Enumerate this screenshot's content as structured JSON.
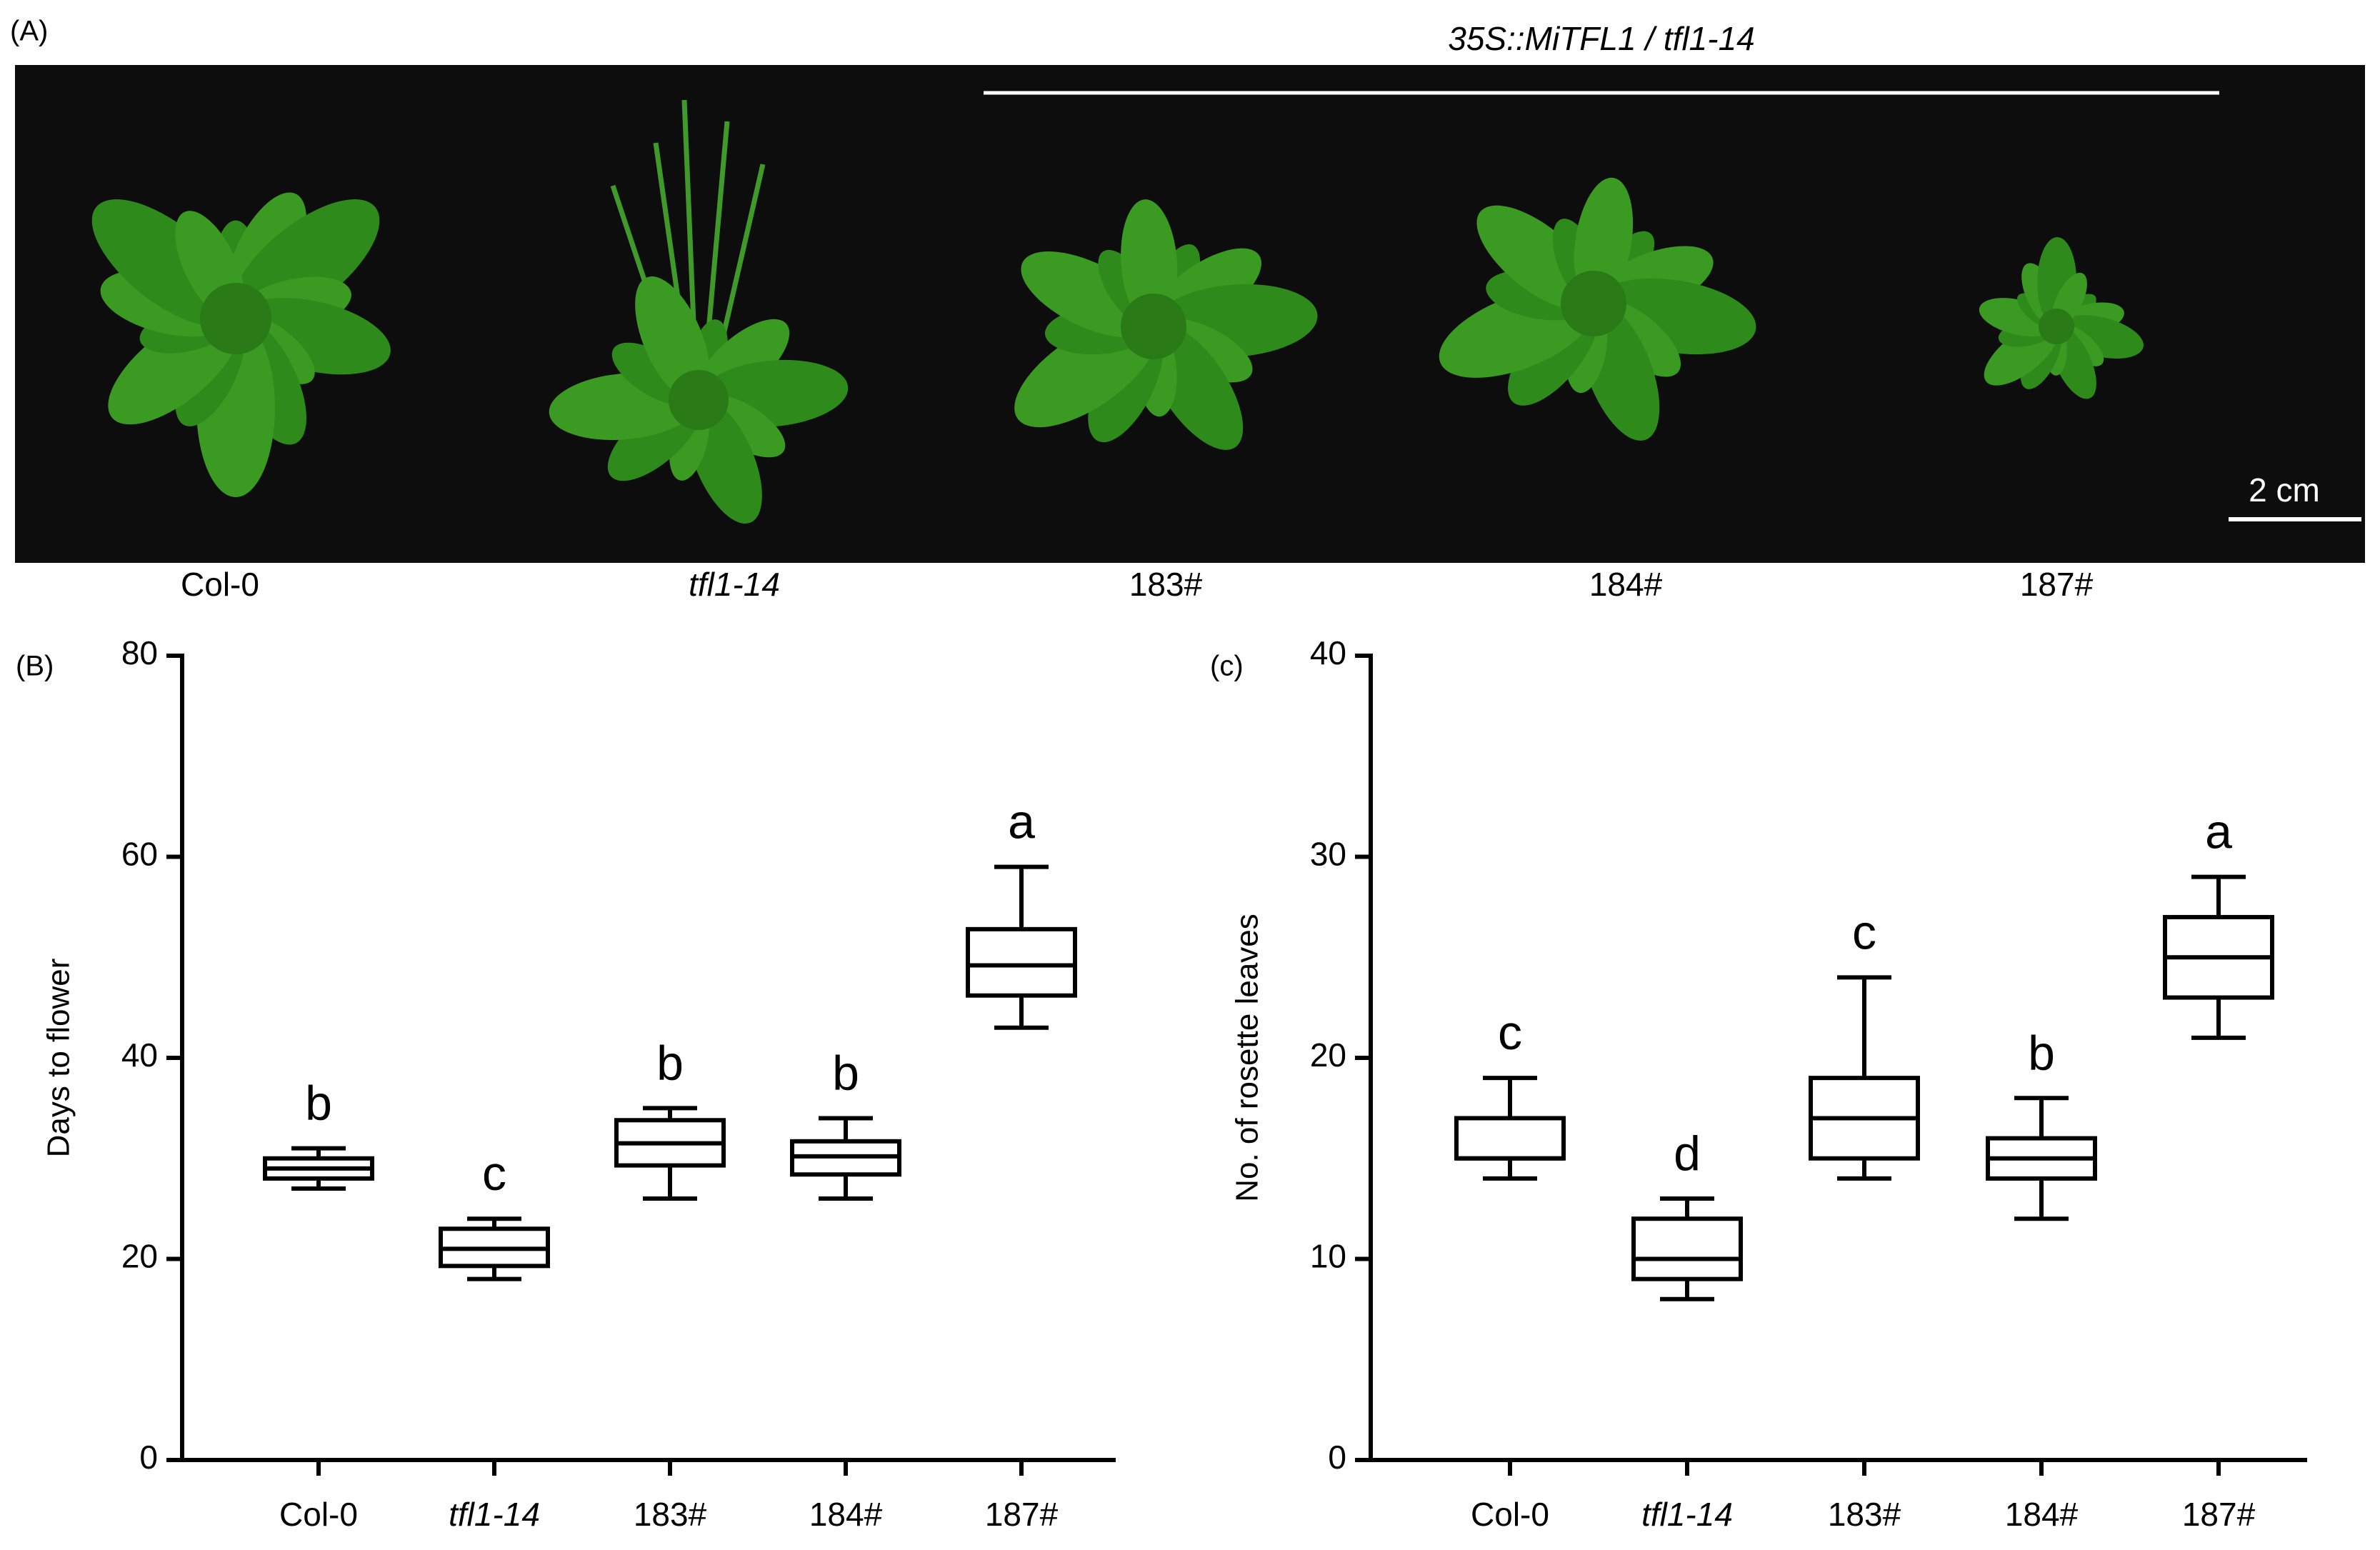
{
  "panel_a": {
    "label": "(A)",
    "title": "35S::MiTFL1 / tfl1-14",
    "scale_bar": "2 cm",
    "genotypes": [
      "Col-0",
      "tfl1-14",
      "183#",
      "184#",
      "187#"
    ]
  },
  "chart_data": [
    {
      "type": "box",
      "panel_label": "(B)",
      "ylabel": "Days to flower",
      "categories": [
        "Col-0",
        "tfl1-14",
        "183#",
        "184#",
        "187#"
      ],
      "boxes": [
        {
          "min": 27,
          "q1": 28,
          "median": 29,
          "q3": 30,
          "max": 31
        },
        {
          "min": 18,
          "q1": 19.3,
          "median": 21,
          "q3": 23,
          "max": 24
        },
        {
          "min": 26,
          "q1": 29.3,
          "median": 31.5,
          "q3": 33.8,
          "max": 35
        },
        {
          "min": 26,
          "q1": 28.4,
          "median": 30.2,
          "q3": 31.7,
          "max": 34
        },
        {
          "min": 43,
          "q1": 46.2,
          "median": 49.2,
          "q3": 52.8,
          "max": 59
        }
      ],
      "annotations": [
        "b",
        "c",
        "b",
        "b",
        "a"
      ],
      "color": "#000000",
      "ylim": [
        0,
        80
      ],
      "yticks": [
        0,
        20,
        40,
        60,
        80
      ]
    },
    {
      "type": "box",
      "panel_label": "(c)",
      "ylabel": "No. of rosette leaves",
      "categories": [
        "Col-0",
        "tfl1-14",
        "183#",
        "184#",
        "187#"
      ],
      "boxes": [
        {
          "min": 14,
          "q1": 15,
          "median": 15,
          "q3": 17,
          "max": 19
        },
        {
          "min": 8,
          "q1": 9,
          "median": 10,
          "q3": 12,
          "max": 13
        },
        {
          "min": 14,
          "q1": 15,
          "median": 17,
          "q3": 19,
          "max": 24
        },
        {
          "min": 12,
          "q1": 14,
          "median": 15,
          "q3": 16,
          "max": 18
        },
        {
          "min": 21,
          "q1": 23,
          "median": 25,
          "q3": 27,
          "max": 29
        }
      ],
      "annotations": [
        "c",
        "d",
        "c",
        "b",
        "a"
      ],
      "color": "#000000",
      "ylim": [
        0,
        40
      ],
      "yticks": [
        0,
        10,
        20,
        30,
        40
      ]
    }
  ]
}
